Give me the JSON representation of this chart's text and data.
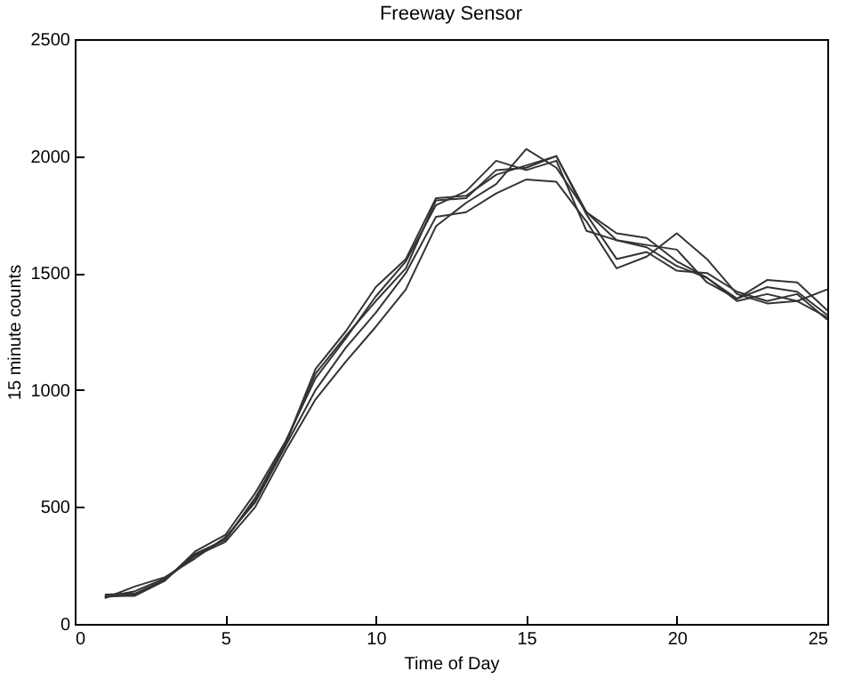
{
  "chart_data": {
    "type": "line",
    "title": "Freeway Sensor",
    "xlabel": "Time of Day",
    "ylabel": "15 minute counts",
    "x": [
      1,
      2,
      3,
      4,
      5,
      6,
      7,
      8,
      9,
      10,
      11,
      12,
      13,
      14,
      15,
      16,
      17,
      18,
      19,
      20,
      21,
      22,
      23,
      24,
      25
    ],
    "xlim": [
      0,
      25
    ],
    "xticks": [
      0,
      5,
      10,
      15,
      20,
      25
    ],
    "ylim": [
      0,
      2500
    ],
    "yticks": [
      0,
      500,
      1000,
      1500,
      2000,
      2500
    ],
    "grid": false,
    "line_style": "solid",
    "series": [
      {
        "color": "#333333",
        "values": [
          115,
          125,
          190,
          300,
          360,
          530,
          770,
          1090,
          1250,
          1440,
          1560,
          1820,
          1830,
          1920,
          1960,
          2000,
          1760,
          1640,
          1610,
          1530,
          1480,
          1380,
          1410,
          1380,
          1310
        ]
      },
      {
        "color": "#333333",
        "values": [
          120,
          120,
          185,
          310,
          380,
          560,
          780,
          1050,
          1220,
          1400,
          1550,
          1790,
          1850,
          1980,
          1940,
          1980,
          1680,
          1640,
          1620,
          1600,
          1460,
          1390,
          1470,
          1460,
          1340
        ]
      },
      {
        "color": "#333333",
        "values": [
          110,
          160,
          200,
          280,
          370,
          520,
          760,
          1000,
          1180,
          1330,
          1500,
          1740,
          1760,
          1840,
          1900,
          1890,
          1720,
          1520,
          1570,
          1670,
          1560,
          1410,
          1370,
          1380,
          1430
        ]
      },
      {
        "color": "#333333",
        "values": [
          125,
          130,
          190,
          290,
          350,
          500,
          740,
          960,
          1120,
          1270,
          1430,
          1700,
          1800,
          1880,
          2030,
          1950,
          1760,
          1670,
          1650,
          1550,
          1480,
          1390,
          1440,
          1420,
          1320
        ]
      },
      {
        "color": "#333333",
        "values": [
          115,
          140,
          195,
          295,
          360,
          540,
          770,
          1070,
          1230,
          1380,
          1520,
          1810,
          1820,
          1940,
          1950,
          2000,
          1750,
          1560,
          1590,
          1510,
          1500,
          1420,
          1380,
          1410,
          1300
        ]
      }
    ]
  }
}
